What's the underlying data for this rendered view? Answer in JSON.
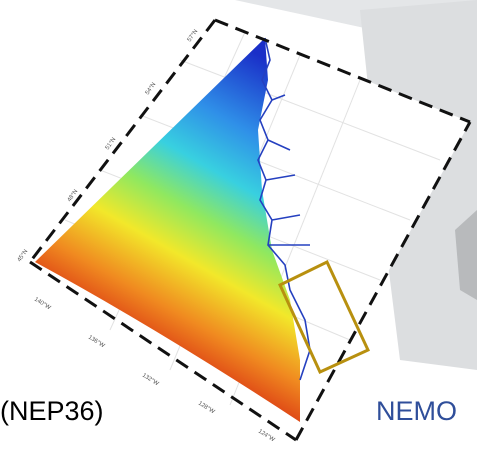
{
  "labels": {
    "left": "(NEP36)",
    "right": "NEMO"
  },
  "map": {
    "lat_labels": [
      "57°N",
      "54°N",
      "51°N",
      "48°N",
      "45°N"
    ],
    "lon_labels": [
      "140°W",
      "136°W",
      "132°W",
      "128°W",
      "124°W"
    ]
  }
}
